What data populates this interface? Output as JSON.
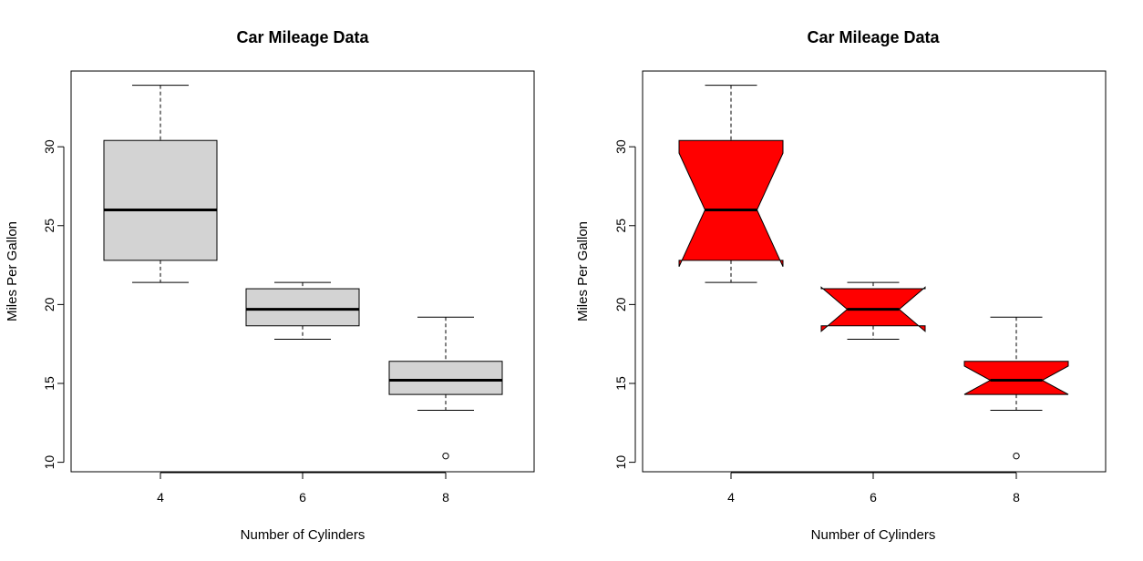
{
  "chart_data": [
    {
      "type": "boxplot",
      "title": "Car Mileage Data",
      "xlabel": "Number of Cylinders",
      "ylabel": "Miles Per Gallon",
      "categories": [
        "4",
        "6",
        "8"
      ],
      "y_ticks": [
        10,
        15,
        20,
        25,
        30
      ],
      "ylim": [
        9.4,
        34.8
      ],
      "notch": false,
      "fill_color": "#d3d3d3",
      "boxes": [
        {
          "category": "4",
          "whisker_low": 21.4,
          "q1": 22.8,
          "median": 26.0,
          "q3": 30.4,
          "whisker_high": 33.9,
          "outliers": []
        },
        {
          "category": "6",
          "whisker_low": 17.8,
          "q1": 18.65,
          "median": 19.7,
          "q3": 21.0,
          "whisker_high": 21.4,
          "outliers": []
        },
        {
          "category": "8",
          "whisker_low": 13.3,
          "q1": 14.3,
          "median": 15.2,
          "q3": 16.4,
          "whisker_high": 19.2,
          "outliers": [
            10.4
          ]
        }
      ]
    },
    {
      "type": "boxplot",
      "title": "Car Mileage Data",
      "xlabel": "Number of Cylinders",
      "ylabel": "Miles Per Gallon",
      "categories": [
        "4",
        "6",
        "8"
      ],
      "y_ticks": [
        10,
        15,
        20,
        25,
        30
      ],
      "ylim": [
        9.4,
        34.8
      ],
      "notch": true,
      "fill_color": "#ff0000",
      "boxes": [
        {
          "category": "4",
          "whisker_low": 21.4,
          "q1": 22.8,
          "median": 26.0,
          "q3": 30.4,
          "whisker_high": 33.9,
          "notch_low": 22.4,
          "notch_high": 29.6,
          "outliers": []
        },
        {
          "category": "6",
          "whisker_low": 17.8,
          "q1": 18.65,
          "median": 19.7,
          "q3": 21.0,
          "whisker_high": 21.4,
          "notch_low": 18.3,
          "notch_high": 21.1,
          "outliers": []
        },
        {
          "category": "8",
          "whisker_low": 13.3,
          "q1": 14.3,
          "median": 15.2,
          "q3": 16.4,
          "whisker_high": 19.2,
          "notch_low": 14.3,
          "notch_high": 16.1,
          "outliers": [
            10.4
          ]
        }
      ]
    }
  ]
}
